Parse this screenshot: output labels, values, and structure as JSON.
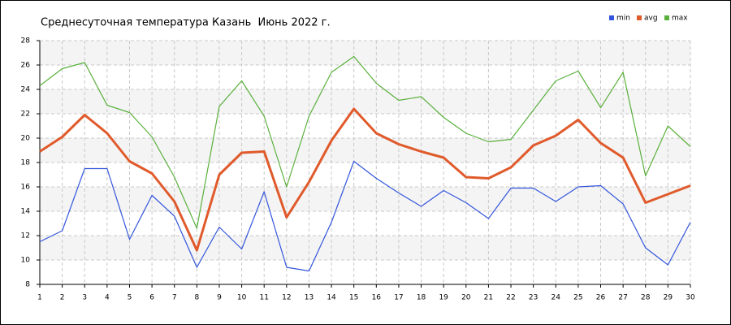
{
  "chart_data": {
    "type": "line",
    "title": "Среднесуточная температура Казань  Июнь 2022 г.",
    "x": [
      1,
      2,
      3,
      4,
      5,
      6,
      7,
      8,
      9,
      10,
      11,
      12,
      13,
      14,
      15,
      16,
      17,
      18,
      19,
      20,
      21,
      22,
      23,
      24,
      25,
      26,
      27,
      28,
      29,
      30
    ],
    "series": [
      {
        "name": "min",
        "color": "#3355dd",
        "values": [
          11.5,
          12.4,
          17.5,
          17.5,
          11.7,
          15.3,
          13.6,
          9.4,
          12.7,
          10.9,
          15.6,
          9.4,
          9.1,
          13.1,
          18.1,
          16.7,
          15.5,
          14.4,
          15.7,
          14.7,
          13.4,
          15.9,
          15.9,
          14.8,
          16.0,
          16.1,
          14.6,
          11.0,
          9.6,
          13.1
        ]
      },
      {
        "name": "avg",
        "color": "#e05a2b",
        "values": [
          18.9,
          20.1,
          21.9,
          20.4,
          18.1,
          17.1,
          14.8,
          10.8,
          17.0,
          18.8,
          18.9,
          13.5,
          16.4,
          19.8,
          22.4,
          20.4,
          19.5,
          18.9,
          18.4,
          16.8,
          16.7,
          17.6,
          19.4,
          20.2,
          21.5,
          19.6,
          18.4,
          14.7,
          15.4,
          16.1
        ]
      },
      {
        "name": "max",
        "color": "#5ab03c",
        "values": [
          24.3,
          25.7,
          26.2,
          22.7,
          22.1,
          20.1,
          16.8,
          12.6,
          22.6,
          24.7,
          21.8,
          16.0,
          21.8,
          25.4,
          26.7,
          24.5,
          23.1,
          23.4,
          21.7,
          20.4,
          19.7,
          19.9,
          22.3,
          24.7,
          25.5,
          22.5,
          25.4,
          16.9,
          21.0,
          19.3
        ]
      }
    ],
    "xlim": [
      1,
      30
    ],
    "xticks": [
      1,
      2,
      3,
      4,
      5,
      6,
      7,
      8,
      9,
      10,
      11,
      12,
      13,
      14,
      15,
      16,
      17,
      18,
      19,
      20,
      21,
      22,
      23,
      24,
      25,
      26,
      27,
      28,
      29,
      30
    ],
    "ylim": [
      8,
      28
    ],
    "yticks": [
      8,
      10,
      12,
      14,
      16,
      18,
      20,
      22,
      24,
      26,
      28
    ],
    "grid": true,
    "legend": "top-right"
  }
}
